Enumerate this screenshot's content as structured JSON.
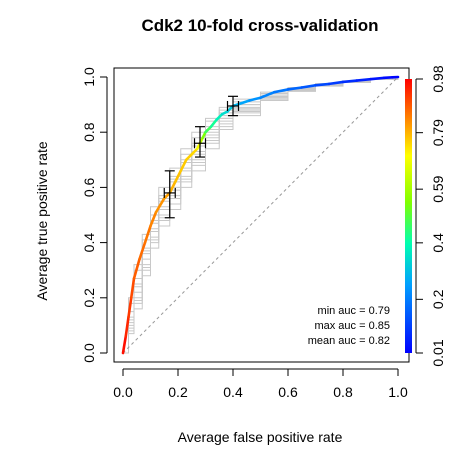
{
  "chart_data": {
    "type": "line",
    "title": "Cdk2 10-fold cross-validation",
    "xlabel": "Average false positive rate",
    "ylabel": "Average true positive rate",
    "xlim": [
      0,
      1
    ],
    "ylim": [
      0,
      1
    ],
    "x_ticks": [
      "0.0",
      "0.2",
      "0.4",
      "0.6",
      "0.8",
      "1.0"
    ],
    "y_ticks": [
      "0.0",
      "0.2",
      "0.4",
      "0.6",
      "0.8",
      "1.0"
    ],
    "grid": false,
    "diagonal_reference": true,
    "colorbar": {
      "min": 0.01,
      "max": 0.98,
      "tick_labels": [
        "0.01",
        "0.2",
        "0.4",
        "0.59",
        "0.79",
        "0.98"
      ],
      "tick_values": [
        0.01,
        0.2,
        0.4,
        0.59,
        0.79,
        0.98
      ]
    },
    "average_curve": {
      "x": [
        0.0,
        0.01,
        0.02,
        0.03,
        0.04,
        0.06,
        0.08,
        0.1,
        0.12,
        0.15,
        0.17,
        0.19,
        0.21,
        0.23,
        0.25,
        0.27,
        0.28,
        0.29,
        0.3,
        0.32,
        0.34,
        0.36,
        0.38,
        0.4,
        0.43,
        0.46,
        0.5,
        0.55,
        0.6,
        0.65,
        0.7,
        0.75,
        0.8,
        0.85,
        0.9,
        0.95,
        0.98,
        1.0
      ],
      "y": [
        0.0,
        0.06,
        0.13,
        0.2,
        0.27,
        0.34,
        0.4,
        0.46,
        0.51,
        0.56,
        0.58,
        0.62,
        0.66,
        0.7,
        0.72,
        0.74,
        0.76,
        0.78,
        0.8,
        0.82,
        0.845,
        0.865,
        0.875,
        0.895,
        0.905,
        0.915,
        0.925,
        0.945,
        0.955,
        0.962,
        0.97,
        0.975,
        0.982,
        0.987,
        0.992,
        0.997,
        0.999,
        1.0
      ],
      "cutoff": [
        0.98,
        0.95,
        0.93,
        0.91,
        0.89,
        0.87,
        0.86,
        0.85,
        0.83,
        0.82,
        0.8,
        0.78,
        0.77,
        0.76,
        0.76,
        0.74,
        0.66,
        0.58,
        0.5,
        0.44,
        0.4,
        0.36,
        0.33,
        0.3,
        0.27,
        0.25,
        0.22,
        0.2,
        0.18,
        0.15,
        0.13,
        0.11,
        0.09,
        0.07,
        0.05,
        0.03,
        0.02,
        0.01
      ]
    },
    "fold_curves": [
      {
        "x": [
          0,
          0.02,
          0.04,
          0.07,
          0.1,
          0.13,
          0.17,
          0.21,
          0.25,
          0.3,
          0.35,
          0.4,
          0.5,
          0.6,
          0.7,
          0.8,
          0.9,
          1.0
        ],
        "y": [
          0,
          0.18,
          0.3,
          0.41,
          0.5,
          0.57,
          0.64,
          0.72,
          0.78,
          0.84,
          0.88,
          0.91,
          0.94,
          0.96,
          0.975,
          0.985,
          0.995,
          1.0
        ]
      },
      {
        "x": [
          0,
          0.02,
          0.04,
          0.07,
          0.1,
          0.13,
          0.17,
          0.21,
          0.25,
          0.3,
          0.35,
          0.4,
          0.5,
          0.6,
          0.7,
          0.8,
          0.9,
          1.0
        ],
        "y": [
          0,
          0.12,
          0.24,
          0.36,
          0.45,
          0.52,
          0.6,
          0.67,
          0.73,
          0.8,
          0.85,
          0.89,
          0.93,
          0.955,
          0.97,
          0.983,
          0.993,
          1.0
        ]
      },
      {
        "x": [
          0,
          0.02,
          0.04,
          0.07,
          0.1,
          0.13,
          0.17,
          0.21,
          0.25,
          0.3,
          0.35,
          0.4,
          0.5,
          0.6,
          0.7,
          0.8,
          0.9,
          1.0
        ],
        "y": [
          0,
          0.08,
          0.18,
          0.3,
          0.4,
          0.48,
          0.54,
          0.62,
          0.68,
          0.76,
          0.82,
          0.87,
          0.92,
          0.95,
          0.97,
          0.982,
          0.992,
          1.0
        ]
      },
      {
        "x": [
          0,
          0.02,
          0.04,
          0.07,
          0.1,
          0.13,
          0.17,
          0.21,
          0.25,
          0.3,
          0.35,
          0.4,
          0.5,
          0.6,
          0.7,
          0.8,
          0.9,
          1.0
        ],
        "y": [
          0,
          0.15,
          0.27,
          0.38,
          0.48,
          0.56,
          0.63,
          0.7,
          0.76,
          0.82,
          0.87,
          0.9,
          0.935,
          0.958,
          0.972,
          0.984,
          0.994,
          1.0
        ]
      },
      {
        "x": [
          0,
          0.02,
          0.04,
          0.07,
          0.1,
          0.13,
          0.17,
          0.21,
          0.25,
          0.3,
          0.35,
          0.4,
          0.5,
          0.6,
          0.7,
          0.8,
          0.9,
          1.0
        ],
        "y": [
          0,
          0.1,
          0.2,
          0.32,
          0.42,
          0.5,
          0.57,
          0.64,
          0.7,
          0.78,
          0.84,
          0.88,
          0.925,
          0.952,
          0.968,
          0.981,
          0.992,
          1.0
        ]
      },
      {
        "x": [
          0,
          0.02,
          0.04,
          0.07,
          0.1,
          0.13,
          0.17,
          0.21,
          0.25,
          0.3,
          0.35,
          0.4,
          0.5,
          0.6,
          0.7,
          0.8,
          0.9,
          1.0
        ],
        "y": [
          0,
          0.2,
          0.32,
          0.43,
          0.53,
          0.6,
          0.67,
          0.74,
          0.8,
          0.85,
          0.89,
          0.92,
          0.945,
          0.962,
          0.976,
          0.986,
          0.995,
          1.0
        ]
      },
      {
        "x": [
          0,
          0.02,
          0.04,
          0.07,
          0.1,
          0.13,
          0.17,
          0.21,
          0.25,
          0.3,
          0.35,
          0.4,
          0.5,
          0.6,
          0.7,
          0.8,
          0.9,
          1.0
        ],
        "y": [
          0,
          0.07,
          0.16,
          0.28,
          0.38,
          0.46,
          0.52,
          0.6,
          0.66,
          0.74,
          0.81,
          0.86,
          0.915,
          0.948,
          0.967,
          0.98,
          0.991,
          1.0
        ]
      },
      {
        "x": [
          0,
          0.02,
          0.04,
          0.07,
          0.1,
          0.13,
          0.17,
          0.21,
          0.25,
          0.3,
          0.35,
          0.4,
          0.5,
          0.6,
          0.7,
          0.8,
          0.9,
          1.0
        ],
        "y": [
          0,
          0.13,
          0.25,
          0.37,
          0.47,
          0.55,
          0.62,
          0.69,
          0.75,
          0.81,
          0.86,
          0.9,
          0.935,
          0.956,
          0.971,
          0.984,
          0.993,
          1.0
        ]
      },
      {
        "x": [
          0,
          0.02,
          0.04,
          0.07,
          0.1,
          0.13,
          0.17,
          0.21,
          0.25,
          0.3,
          0.35,
          0.4,
          0.5,
          0.6,
          0.7,
          0.8,
          0.9,
          1.0
        ],
        "y": [
          0,
          0.11,
          0.22,
          0.34,
          0.44,
          0.53,
          0.59,
          0.66,
          0.72,
          0.79,
          0.85,
          0.885,
          0.928,
          0.953,
          0.969,
          0.982,
          0.992,
          1.0
        ]
      },
      {
        "x": [
          0,
          0.02,
          0.04,
          0.07,
          0.1,
          0.13,
          0.17,
          0.21,
          0.25,
          0.3,
          0.35,
          0.4,
          0.5,
          0.6,
          0.7,
          0.8,
          0.9,
          1.0
        ],
        "y": [
          0,
          0.09,
          0.19,
          0.31,
          0.41,
          0.49,
          0.56,
          0.63,
          0.69,
          0.77,
          0.83,
          0.875,
          0.92,
          0.95,
          0.968,
          0.981,
          0.991,
          1.0
        ]
      }
    ],
    "error_bars": [
      {
        "x": 0.17,
        "y": 0.58,
        "x_low": 0.15,
        "x_high": 0.19,
        "y_low": 0.49,
        "y_high": 0.66
      },
      {
        "x": 0.28,
        "y": 0.76,
        "x_low": 0.26,
        "x_high": 0.3,
        "y_low": 0.71,
        "y_high": 0.82
      },
      {
        "x": 0.4,
        "y": 0.895,
        "x_low": 0.38,
        "x_high": 0.42,
        "y_low": 0.86,
        "y_high": 0.93
      }
    ],
    "annotations": [
      "min auc = 0.79",
      "max auc = 0.85",
      "mean auc = 0.82"
    ]
  }
}
